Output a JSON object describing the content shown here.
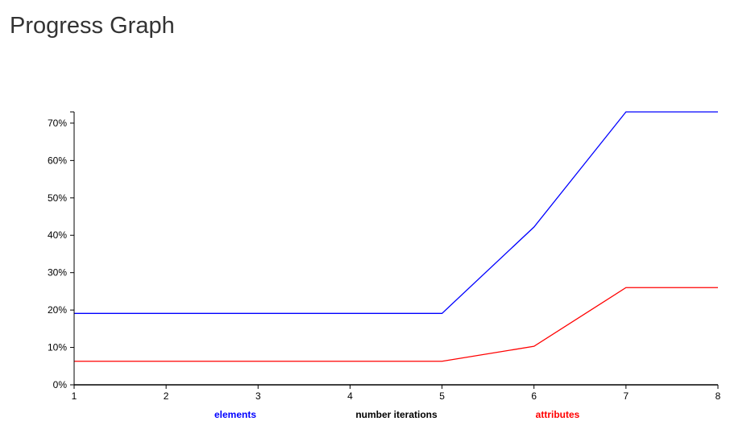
{
  "page": {
    "title": "Progress Graph"
  },
  "chart_data": {
    "type": "line",
    "title": "",
    "xlabel": "number iterations",
    "ylabel": "",
    "x": [
      1,
      2,
      3,
      4,
      5,
      6,
      7,
      8
    ],
    "x_ticks": [
      "1",
      "2",
      "3",
      "4",
      "5",
      "6",
      "7",
      "8"
    ],
    "xlim": [
      1,
      8
    ],
    "ylim": [
      0,
      73
    ],
    "y_ticks": [
      0,
      10,
      20,
      30,
      40,
      50,
      60,
      70
    ],
    "y_tick_labels": [
      "0%",
      "10%",
      "20%",
      "30%",
      "40%",
      "50%",
      "60%",
      "70%"
    ],
    "grid": false,
    "legend_placement": "bottom",
    "series": [
      {
        "name": "elements",
        "color": "#0000ff",
        "values": [
          19.1,
          19.1,
          19.1,
          19.1,
          19.1,
          42.2,
          73.0,
          73.0
        ]
      },
      {
        "name": "attributes",
        "color": "#ff0000",
        "values": [
          6.3,
          6.3,
          6.3,
          6.3,
          6.3,
          10.3,
          26.0,
          26.0
        ]
      }
    ],
    "axis_color": "#000000",
    "xlabel_color": "#000000"
  }
}
